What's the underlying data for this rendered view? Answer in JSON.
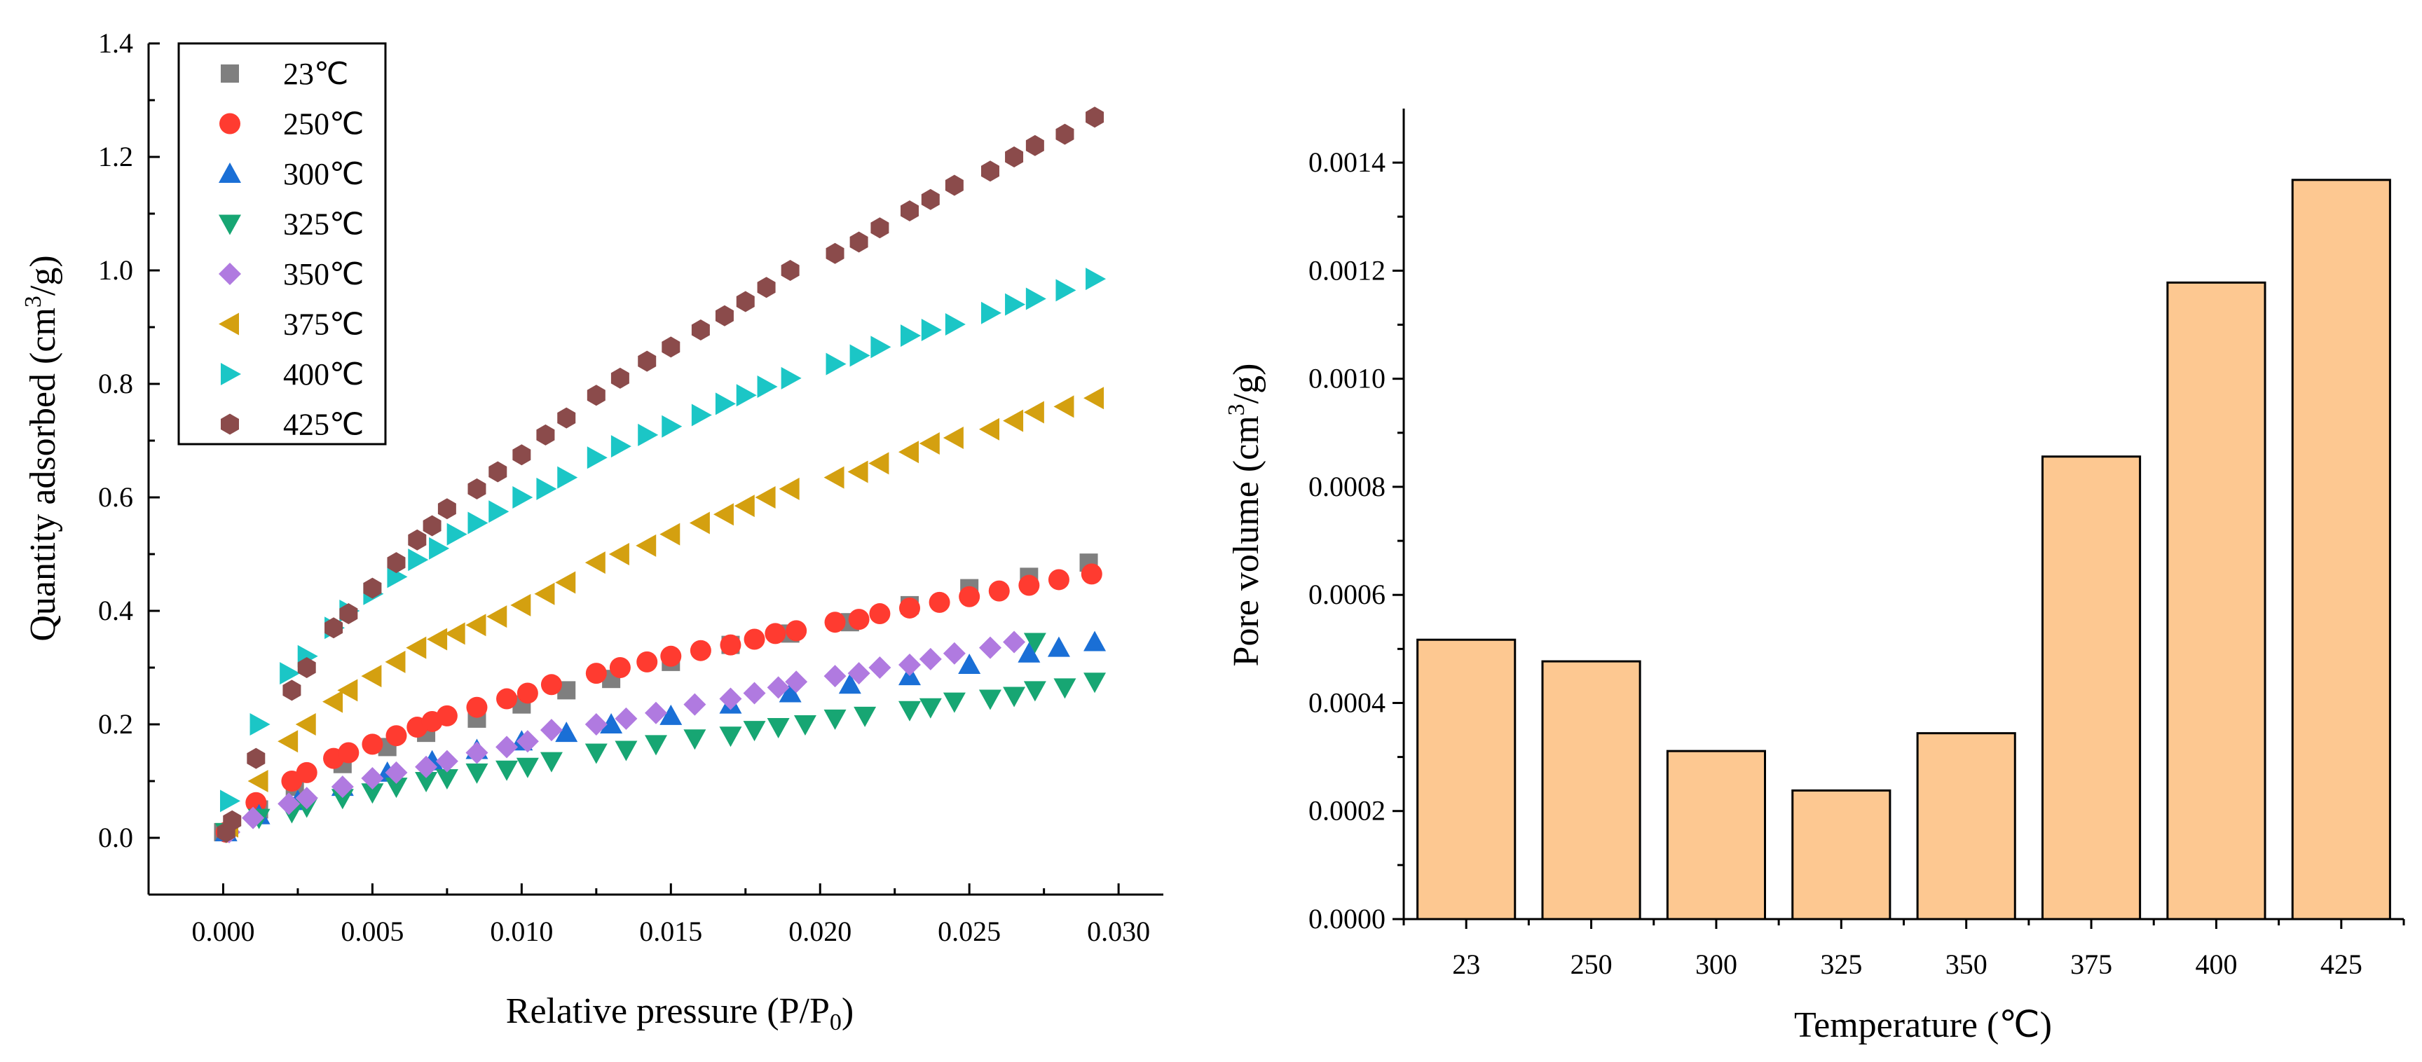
{
  "chart_data": [
    {
      "type": "scatter",
      "title": "",
      "xlabel": "Relative pressure (P/P",
      "xlabel_sub": "0",
      "xlabel_end": ")",
      "ylabel": "Quantity adsorbed (cm",
      "ylabel_sup": "3",
      "ylabel_end": "/g)",
      "xlim": [
        -0.0025,
        0.0315
      ],
      "ylim": [
        -0.1,
        1.4
      ],
      "xticks": [
        "0.000",
        "0.005",
        "0.010",
        "0.015",
        "0.020",
        "0.025",
        "0.030"
      ],
      "xtick_values": [
        0,
        0.005,
        0.01,
        0.015,
        0.02,
        0.025,
        0.03
      ],
      "yticks": [
        "0.0",
        "0.2",
        "0.4",
        "0.6",
        "0.8",
        "1.0",
        "1.2",
        "1.4"
      ],
      "ytick_values": [
        0,
        0.2,
        0.4,
        0.6,
        0.8,
        1.0,
        1.2,
        1.4
      ],
      "legend_position": "top-left",
      "series": [
        {
          "name": "23℃",
          "marker": "square",
          "color": "#7f7f7f",
          "x": [
            0,
            0.0012,
            0.0024,
            0.004,
            0.0055,
            0.0068,
            0.0085,
            0.01,
            0.0115,
            0.013,
            0.015,
            0.017,
            0.019,
            0.021,
            0.023,
            0.025,
            0.027,
            0.029
          ],
          "y": [
            0.01,
            0.05,
            0.09,
            0.13,
            0.16,
            0.185,
            0.21,
            0.235,
            0.26,
            0.28,
            0.31,
            0.34,
            0.36,
            0.38,
            0.41,
            0.44,
            0.46,
            0.485
          ]
        },
        {
          "name": "250℃",
          "marker": "circle",
          "color": "#ff3b30",
          "x": [
            0.0001,
            0.0011,
            0.0023,
            0.0028,
            0.0037,
            0.0042,
            0.005,
            0.0058,
            0.0065,
            0.007,
            0.0075,
            0.0085,
            0.0095,
            0.0102,
            0.011,
            0.0125,
            0.0133,
            0.0142,
            0.015,
            0.016,
            0.017,
            0.0178,
            0.0185,
            0.0192,
            0.0205,
            0.0213,
            0.022,
            0.023,
            0.024,
            0.025,
            0.026,
            0.027,
            0.028,
            0.0291
          ],
          "y": [
            0.01,
            0.062,
            0.1,
            0.115,
            0.14,
            0.15,
            0.165,
            0.18,
            0.195,
            0.205,
            0.215,
            0.23,
            0.245,
            0.255,
            0.27,
            0.29,
            0.3,
            0.31,
            0.32,
            0.33,
            0.34,
            0.35,
            0.36,
            0.365,
            0.38,
            0.385,
            0.395,
            0.405,
            0.415,
            0.425,
            0.435,
            0.445,
            0.455,
            0.465
          ]
        },
        {
          "name": "300℃",
          "marker": "triangle-up",
          "color": "#1a6fd6",
          "x": [
            0.0001,
            0.0012,
            0.0025,
            0.004,
            0.0055,
            0.007,
            0.0085,
            0.01,
            0.0115,
            0.013,
            0.015,
            0.017,
            0.019,
            0.021,
            0.023,
            0.025,
            0.027,
            0.028,
            0.0292
          ],
          "y": [
            0.01,
            0.04,
            0.065,
            0.09,
            0.115,
            0.135,
            0.155,
            0.17,
            0.185,
            0.2,
            0.215,
            0.235,
            0.255,
            0.27,
            0.285,
            0.305,
            0.325,
            0.335,
            0.345
          ]
        },
        {
          "name": "325℃",
          "marker": "triangle-down",
          "color": "#17a673",
          "x": [
            0.0001,
            0.0012,
            0.0023,
            0.0028,
            0.004,
            0.005,
            0.0058,
            0.0068,
            0.0075,
            0.0085,
            0.0095,
            0.0102,
            0.011,
            0.0125,
            0.0135,
            0.0145,
            0.0158,
            0.017,
            0.0178,
            0.0186,
            0.0195,
            0.0205,
            0.0215,
            0.023,
            0.0237,
            0.0245,
            0.0257,
            0.0265,
            0.0272,
            0.0282,
            0.0292,
            0.0272
          ],
          "y": [
            0.01,
            0.035,
            0.045,
            0.055,
            0.07,
            0.08,
            0.09,
            0.1,
            0.105,
            0.115,
            0.12,
            0.125,
            0.135,
            0.15,
            0.155,
            0.165,
            0.175,
            0.18,
            0.19,
            0.195,
            0.2,
            0.21,
            0.215,
            0.225,
            0.23,
            0.24,
            0.245,
            0.25,
            0.26,
            0.265,
            0.275,
            0.345
          ]
        },
        {
          "name": "350℃",
          "marker": "diamond",
          "color": "#b07ae0",
          "x": [
            0.0002,
            0.001,
            0.0022,
            0.0028,
            0.004,
            0.005,
            0.0058,
            0.0068,
            0.0075,
            0.0085,
            0.0095,
            0.0102,
            0.011,
            0.0125,
            0.0135,
            0.0145,
            0.0158,
            0.017,
            0.0178,
            0.0186,
            0.0192,
            0.0205,
            0.0213,
            0.022,
            0.023,
            0.0237,
            0.0245,
            0.0257,
            0.0265
          ],
          "y": [
            0.01,
            0.035,
            0.06,
            0.07,
            0.09,
            0.105,
            0.115,
            0.125,
            0.135,
            0.15,
            0.16,
            0.17,
            0.19,
            0.2,
            0.21,
            0.22,
            0.235,
            0.245,
            0.255,
            0.265,
            0.275,
            0.285,
            0.29,
            0.3,
            0.305,
            0.315,
            0.325,
            0.335,
            0.345
          ]
        },
        {
          "name": "375℃",
          "marker": "triangle-left",
          "color": "#d4a010",
          "x": [
            0.0002,
            0.0012,
            0.0022,
            0.0028,
            0.0037,
            0.0042,
            0.005,
            0.0058,
            0.0065,
            0.0072,
            0.0078,
            0.0085,
            0.0092,
            0.01,
            0.0108,
            0.0115,
            0.0125,
            0.0133,
            0.0142,
            0.015,
            0.016,
            0.0168,
            0.0175,
            0.0182,
            0.019,
            0.0205,
            0.0213,
            0.022,
            0.023,
            0.0237,
            0.0245,
            0.0257,
            0.0265,
            0.0272,
            0.0282,
            0.0292
          ],
          "y": [
            0.02,
            0.1,
            0.17,
            0.2,
            0.24,
            0.26,
            0.285,
            0.31,
            0.335,
            0.35,
            0.36,
            0.375,
            0.39,
            0.41,
            0.43,
            0.45,
            0.485,
            0.5,
            0.515,
            0.535,
            0.555,
            0.57,
            0.585,
            0.6,
            0.615,
            0.635,
            0.645,
            0.66,
            0.68,
            0.695,
            0.705,
            0.72,
            0.735,
            0.75,
            0.76,
            0.775
          ]
        },
        {
          "name": "400℃",
          "marker": "triangle-right",
          "color": "#1bc6c6",
          "x": [
            0.0002,
            0.0012,
            0.0022,
            0.0028,
            0.0037,
            0.0042,
            0.005,
            0.0058,
            0.0065,
            0.0072,
            0.0078,
            0.0085,
            0.0092,
            0.01,
            0.0108,
            0.0115,
            0.0125,
            0.0133,
            0.0142,
            0.015,
            0.016,
            0.0168,
            0.0175,
            0.0182,
            0.019,
            0.0205,
            0.0213,
            0.022,
            0.023,
            0.0237,
            0.0245,
            0.0257,
            0.0265,
            0.0272,
            0.0282,
            0.0292
          ],
          "y": [
            0.065,
            0.2,
            0.29,
            0.32,
            0.37,
            0.4,
            0.43,
            0.46,
            0.49,
            0.51,
            0.535,
            0.555,
            0.575,
            0.6,
            0.615,
            0.635,
            0.67,
            0.69,
            0.71,
            0.725,
            0.745,
            0.765,
            0.78,
            0.795,
            0.81,
            0.835,
            0.85,
            0.865,
            0.885,
            0.895,
            0.905,
            0.925,
            0.94,
            0.95,
            0.965,
            0.985
          ]
        },
        {
          "name": "425℃",
          "marker": "hexagon",
          "color": "#8b4b4b",
          "x": [
            0.0001,
            0.0003,
            0.0011,
            0.0023,
            0.0028,
            0.0037,
            0.0042,
            0.005,
            0.0058,
            0.0065,
            0.007,
            0.0075,
            0.0085,
            0.0092,
            0.01,
            0.0108,
            0.0115,
            0.0125,
            0.0133,
            0.0142,
            0.015,
            0.016,
            0.0168,
            0.0175,
            0.0182,
            0.019,
            0.0205,
            0.0213,
            0.022,
            0.023,
            0.0237,
            0.0245,
            0.0257,
            0.0265,
            0.0272,
            0.0282,
            0.0292
          ],
          "y": [
            0.01,
            0.03,
            0.14,
            0.26,
            0.3,
            0.37,
            0.395,
            0.44,
            0.485,
            0.525,
            0.55,
            0.58,
            0.615,
            0.645,
            0.675,
            0.71,
            0.74,
            0.78,
            0.81,
            0.84,
            0.865,
            0.895,
            0.92,
            0.945,
            0.97,
            1.0,
            1.03,
            1.05,
            1.075,
            1.105,
            1.125,
            1.15,
            1.175,
            1.2,
            1.22,
            1.24,
            1.27
          ]
        }
      ]
    },
    {
      "type": "bar",
      "title": "",
      "xlabel": "Temperature (℃)",
      "ylabel": "Pore volume (cm",
      "ylabel_sup": "3",
      "ylabel_end": "/g)",
      "categories": [
        "23",
        "250",
        "300",
        "325",
        "350",
        "375",
        "400",
        "425"
      ],
      "values": [
        0.000517,
        0.000477,
        0.000311,
        0.000238,
        0.000344,
        0.000856,
        0.001178,
        0.001368
      ],
      "ylim": [
        0,
        0.0015
      ],
      "yticks": [
        "0.0000",
        "0.0002",
        "0.0004",
        "0.0006",
        "0.0008",
        "0.0010",
        "0.0012",
        "0.0014"
      ],
      "ytick_values": [
        0,
        0.0002,
        0.0004,
        0.0006,
        0.0008,
        0.001,
        0.0012,
        0.0014
      ],
      "bar_color": "#fdc891"
    }
  ]
}
